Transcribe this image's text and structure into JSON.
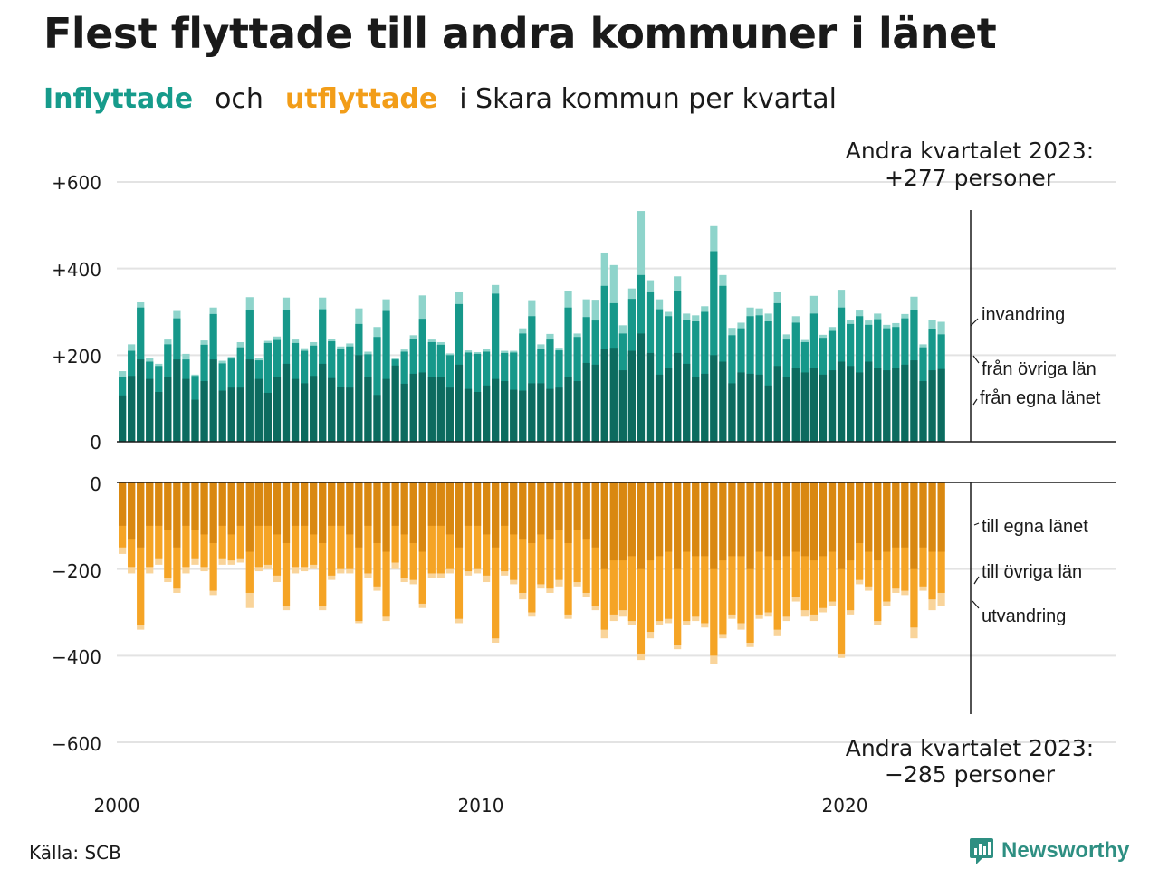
{
  "title": "Flest flyttade till andra kommuner i länet",
  "subtitle": {
    "in_word": "Inflyttade",
    "and_word": "och",
    "out_word": "utflyttade",
    "rest": "i Skara  kommun  per  kvartal"
  },
  "source": "Källa: SCB",
  "brand": "Newsworthy",
  "colors": {
    "in_own": "#0c6b5f",
    "in_other": "#16988a",
    "in_immig": "#8ed4cb",
    "out_own": "#d98811",
    "out_other": "#f5a425",
    "out_emig": "#f9d49a"
  },
  "chart_data": {
    "type": "bar",
    "x_start": 2000,
    "periods_per_year": 4,
    "x_ticks": [
      "2000",
      "2010",
      "2020"
    ],
    "y_ticks_in": [
      "+600",
      "+400",
      "+200",
      "0"
    ],
    "y_ticks_out": [
      "0",
      "−200",
      "−400",
      "−600"
    ],
    "ylim_in": [
      0,
      600
    ],
    "ylim_out": [
      -600,
      0
    ],
    "grid": true,
    "series_in_labels": [
      "invandring",
      "från övriga län",
      "från egna länet"
    ],
    "series_out_labels": [
      "till egna länet",
      "till övriga län",
      "utvandring"
    ],
    "annotation_in": [
      "Andra kvartalet 2023:",
      "+277 personer"
    ],
    "annotation_out": [
      "Andra kvartalet 2023:",
      "−285 personer"
    ],
    "inflow_total": [
      163,
      225,
      322,
      193,
      180,
      236,
      302,
      203,
      155,
      234,
      310,
      187,
      196,
      230,
      334,
      193,
      233,
      243,
      333,
      236,
      216,
      230,
      333,
      238,
      220,
      227,
      308,
      208,
      265,
      329,
      194,
      213,
      246,
      338,
      236,
      230,
      204,
      345,
      211,
      207,
      214,
      362,
      210,
      210,
      262,
      327,
      225,
      249,
      217,
      349,
      250,
      329,
      328,
      437,
      408,
      269,
      354,
      533,
      373,
      329,
      300,
      382,
      296,
      292,
      313,
      498,
      385,
      263,
      275,
      310,
      308,
      296,
      345,
      248,
      290,
      235,
      337,
      247,
      265,
      351,
      282,
      303,
      280,
      296,
      270,
      274,
      295,
      335,
      225,
      281,
      277
    ],
    "inflow_other_top": [
      150,
      210,
      310,
      185,
      175,
      225,
      285,
      190,
      152,
      224,
      295,
      181,
      192,
      218,
      305,
      188,
      228,
      235,
      304,
      228,
      210,
      222,
      306,
      232,
      214,
      220,
      272,
      202,
      242,
      302,
      190,
      208,
      238,
      284,
      230,
      224,
      200,
      318,
      206,
      203,
      208,
      342,
      205,
      206,
      250,
      290,
      215,
      236,
      211,
      310,
      242,
      288,
      280,
      360,
      320,
      250,
      330,
      385,
      345,
      306,
      290,
      348,
      282,
      278,
      300,
      440,
      360,
      246,
      262,
      290,
      292,
      278,
      320,
      236,
      275,
      230,
      296,
      240,
      256,
      310,
      272,
      290,
      270,
      283,
      262,
      265,
      285,
      305,
      218,
      260,
      248
    ],
    "inflow_own": [
      107,
      152,
      190,
      145,
      115,
      150,
      190,
      145,
      97,
      140,
      190,
      118,
      125,
      125,
      190,
      145,
      113,
      150,
      180,
      145,
      135,
      152,
      180,
      147,
      127,
      125,
      200,
      150,
      108,
      145,
      176,
      134,
      157,
      160,
      150,
      150,
      125,
      178,
      122,
      115,
      130,
      145,
      140,
      120,
      118,
      135,
      135,
      122,
      125,
      150,
      140,
      182,
      178,
      215,
      217,
      165,
      210,
      250,
      205,
      155,
      170,
      205,
      180,
      150,
      157,
      200,
      185,
      135,
      160,
      157,
      155,
      130,
      175,
      150,
      170,
      160,
      170,
      155,
      165,
      185,
      175,
      160,
      185,
      170,
      165,
      170,
      178,
      188,
      140,
      165,
      168
    ],
    "outflow_total": [
      165,
      210,
      340,
      210,
      190,
      230,
      255,
      210,
      190,
      205,
      260,
      190,
      190,
      185,
      290,
      205,
      200,
      230,
      295,
      210,
      205,
      200,
      295,
      225,
      210,
      210,
      325,
      220,
      250,
      320,
      200,
      230,
      235,
      290,
      220,
      220,
      210,
      325,
      215,
      210,
      230,
      370,
      215,
      235,
      270,
      310,
      245,
      255,
      240,
      315,
      240,
      265,
      295,
      360,
      320,
      310,
      330,
      410,
      360,
      330,
      325,
      385,
      330,
      320,
      335,
      420,
      360,
      315,
      340,
      380,
      315,
      310,
      355,
      320,
      275,
      310,
      320,
      300,
      285,
      405,
      305,
      235,
      250,
      330,
      285,
      255,
      260,
      360,
      250,
      295,
      285
    ],
    "outflow_other_top": [
      150,
      195,
      330,
      195,
      175,
      220,
      245,
      195,
      175,
      195,
      250,
      175,
      180,
      175,
      255,
      195,
      190,
      215,
      285,
      195,
      195,
      190,
      285,
      215,
      200,
      200,
      320,
      210,
      240,
      310,
      185,
      220,
      225,
      280,
      210,
      210,
      200,
      315,
      205,
      200,
      215,
      360,
      205,
      225,
      255,
      300,
      235,
      245,
      225,
      305,
      230,
      255,
      285,
      340,
      305,
      295,
      320,
      395,
      345,
      320,
      315,
      375,
      320,
      310,
      325,
      400,
      350,
      305,
      325,
      370,
      305,
      300,
      340,
      310,
      265,
      295,
      305,
      290,
      275,
      395,
      295,
      225,
      240,
      320,
      275,
      245,
      250,
      335,
      240,
      270,
      255
    ],
    "outflow_own": [
      100,
      130,
      150,
      100,
      100,
      110,
      150,
      100,
      110,
      120,
      140,
      100,
      120,
      100,
      160,
      100,
      100,
      120,
      140,
      100,
      100,
      120,
      140,
      100,
      100,
      120,
      150,
      100,
      140,
      160,
      100,
      120,
      140,
      160,
      100,
      100,
      120,
      150,
      100,
      100,
      120,
      150,
      100,
      120,
      130,
      140,
      120,
      130,
      110,
      140,
      110,
      130,
      150,
      200,
      180,
      180,
      170,
      200,
      180,
      170,
      160,
      200,
      160,
      170,
      170,
      200,
      180,
      170,
      170,
      200,
      160,
      170,
      180,
      170,
      160,
      170,
      180,
      170,
      160,
      200,
      180,
      140,
      160,
      180,
      160,
      150,
      150,
      200,
      150,
      160,
      160
    ]
  }
}
